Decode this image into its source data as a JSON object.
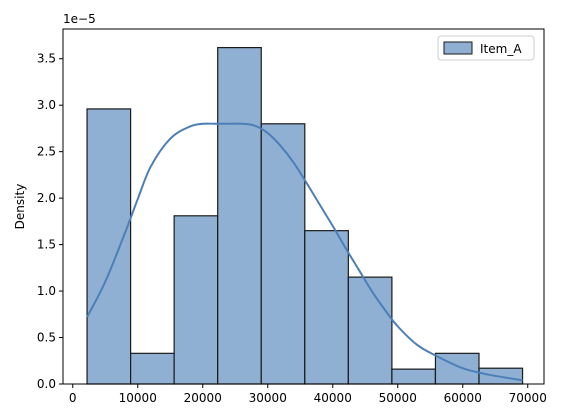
{
  "chart_data": {
    "type": "bar",
    "subtype": "histogram-with-kde",
    "title": "",
    "xlabel": "",
    "ylabel": "Density",
    "offset_label": "1e−5",
    "xlim": [
      -1500,
      72500
    ],
    "ylim": [
      0,
      3.82
    ],
    "xticks": [
      0,
      10000,
      20000,
      30000,
      40000,
      50000,
      60000,
      70000
    ],
    "yticks": [
      0.0,
      0.5,
      1.0,
      1.5,
      2.0,
      2.5,
      3.0,
      3.5
    ],
    "ytick_labels": [
      "0.0",
      "0.5",
      "1.0",
      "1.5",
      "2.0",
      "2.5",
      "3.0",
      "3.5"
    ],
    "series": [
      {
        "name": "Item_A",
        "bins": [
          {
            "x0": 2200,
            "x1": 8900,
            "density": 2.96
          },
          {
            "x0": 8900,
            "x1": 15600,
            "density": 0.33
          },
          {
            "x0": 15600,
            "x1": 22300,
            "density": 1.81
          },
          {
            "x0": 22300,
            "x1": 29000,
            "density": 3.62
          },
          {
            "x0": 29000,
            "x1": 35700,
            "density": 2.8
          },
          {
            "x0": 35700,
            "x1": 42400,
            "density": 1.65
          },
          {
            "x0": 42400,
            "x1": 49100,
            "density": 1.15
          },
          {
            "x0": 49100,
            "x1": 55800,
            "density": 0.16
          },
          {
            "x0": 55800,
            "x1": 62500,
            "density": 0.33
          },
          {
            "x0": 62500,
            "x1": 69200,
            "density": 0.17
          }
        ],
        "kde": {
          "x": [
            2200,
            5000,
            8000,
            10000,
            12000,
            15000,
            18000,
            20000,
            22000,
            24000,
            26000,
            28000,
            30000,
            32000,
            34000,
            36000,
            38000,
            40000,
            42000,
            44000,
            46000,
            48000,
            50000,
            53000,
            56000,
            60000,
            64000,
            69200
          ],
          "y": [
            0.72,
            1.1,
            1.62,
            1.99,
            2.34,
            2.64,
            2.77,
            2.8,
            2.8,
            2.8,
            2.8,
            2.78,
            2.7,
            2.56,
            2.38,
            2.16,
            1.93,
            1.7,
            1.46,
            1.23,
            1.0,
            0.8,
            0.62,
            0.42,
            0.3,
            0.17,
            0.1,
            0.04
          ]
        }
      }
    ],
    "legend_position": "upper-right",
    "grid": false,
    "colors": {
      "bar_fill": "#8fb0d3",
      "bar_edge": "#1a1a1a",
      "kde_line": "#4c7fb8",
      "axes": "#000000"
    }
  }
}
